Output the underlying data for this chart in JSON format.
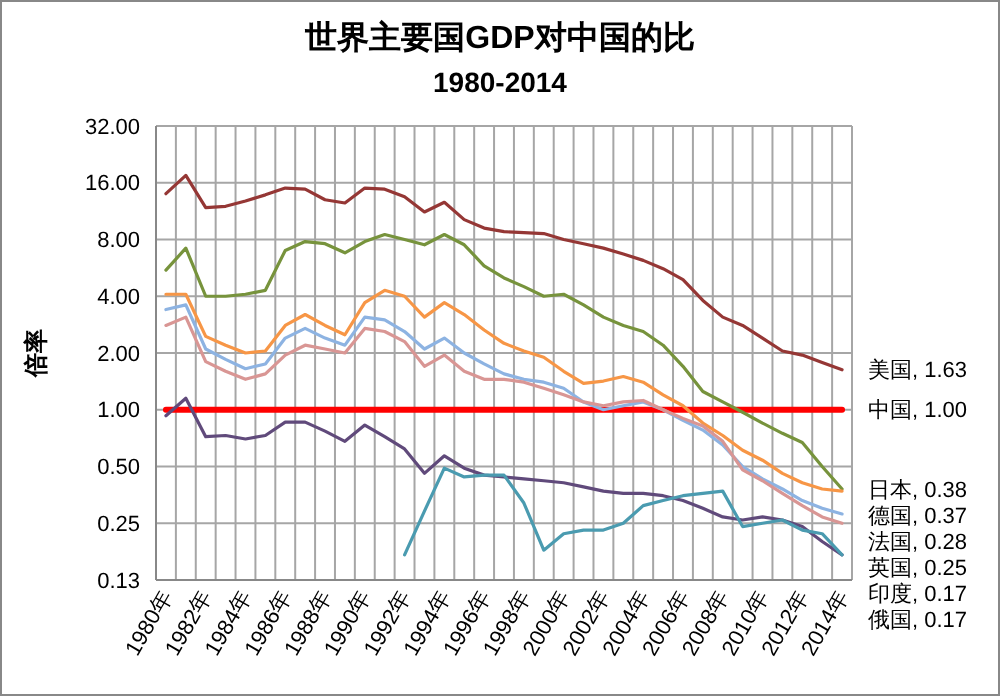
{
  "chart_data": {
    "type": "line",
    "title": "世界主要国GDP对中国的比",
    "subtitle": "1980-2014",
    "ylabel": "倍率",
    "categories": [
      "1980年",
      null,
      "1982年",
      null,
      "1984年",
      null,
      "1986年",
      null,
      "1988年",
      null,
      "1990年",
      null,
      "1992年",
      null,
      "1994年",
      null,
      "1996年",
      null,
      "1998年",
      null,
      "2000年",
      null,
      "2002年",
      null,
      "2004年",
      null,
      "2006年",
      null,
      "2008年",
      null,
      "2010年",
      null,
      "2012年",
      null,
      "2014年"
    ],
    "series": [
      {
        "color": "#953735",
        "values": [
          14,
          17.5,
          11.8,
          12,
          12.8,
          13.8,
          15,
          14.8,
          13,
          12.5,
          15,
          14.8,
          13.5,
          11.2,
          12.6,
          10.2,
          9.2,
          8.8,
          8.7,
          8.6,
          8.0,
          7.6,
          7.2,
          6.7,
          6.2,
          5.6,
          4.9,
          3.8,
          3.1,
          2.8,
          2.4,
          2.05,
          1.95,
          1.78,
          1.63
        ]
      },
      {
        "color": "#ff0000",
        "values": [
          1,
          1,
          1,
          1,
          1,
          1,
          1,
          1,
          1,
          1,
          1,
          1,
          1,
          1,
          1,
          1,
          1,
          1,
          1,
          1,
          1,
          1,
          1,
          1,
          1,
          1,
          1,
          1,
          1,
          1,
          1,
          1,
          1,
          1,
          1
        ]
      },
      {
        "color": "#77933c",
        "values": [
          5.5,
          7.2,
          4.0,
          4.0,
          4.1,
          4.3,
          7.0,
          7.8,
          7.6,
          6.8,
          7.8,
          8.5,
          8.0,
          7.5,
          8.5,
          7.5,
          5.8,
          5.0,
          4.5,
          4.0,
          4.1,
          3.6,
          3.1,
          2.8,
          2.6,
          2.2,
          1.7,
          1.25,
          1.1,
          0.97,
          0.85,
          0.75,
          0.67,
          0.5,
          0.38
        ]
      },
      {
        "color": "#f79646",
        "values": [
          4.1,
          4.1,
          2.45,
          2.2,
          2.0,
          2.05,
          2.8,
          3.2,
          2.8,
          2.5,
          3.7,
          4.3,
          4.0,
          3.1,
          3.7,
          3.2,
          2.65,
          2.25,
          2.05,
          1.9,
          1.6,
          1.38,
          1.42,
          1.5,
          1.4,
          1.2,
          1.05,
          0.85,
          0.73,
          0.61,
          0.54,
          0.46,
          0.41,
          0.38,
          0.37
        ]
      },
      {
        "color": "#8db3e2",
        "values": [
          3.4,
          3.6,
          2.1,
          1.85,
          1.65,
          1.75,
          2.4,
          2.7,
          2.4,
          2.2,
          3.1,
          3.0,
          2.6,
          2.1,
          2.4,
          2.0,
          1.75,
          1.55,
          1.45,
          1.4,
          1.3,
          1.1,
          1.0,
          1.05,
          1.1,
          1.0,
          0.88,
          0.78,
          0.65,
          0.5,
          0.43,
          0.38,
          0.33,
          0.3,
          0.28
        ]
      },
      {
        "color": "#d99694",
        "values": [
          2.8,
          3.1,
          1.8,
          1.6,
          1.45,
          1.55,
          1.95,
          2.2,
          2.1,
          2.0,
          2.7,
          2.6,
          2.3,
          1.7,
          1.95,
          1.6,
          1.45,
          1.45,
          1.4,
          1.3,
          1.2,
          1.1,
          1.05,
          1.1,
          1.12,
          1.0,
          0.9,
          0.82,
          0.68,
          0.48,
          0.42,
          0.36,
          0.31,
          0.27,
          0.25
        ]
      },
      {
        "color": "#604a7b",
        "values": [
          0.93,
          1.15,
          0.72,
          0.73,
          0.7,
          0.73,
          0.86,
          0.86,
          0.77,
          0.68,
          0.83,
          0.72,
          0.62,
          0.46,
          0.57,
          0.49,
          0.45,
          0.44,
          0.43,
          0.42,
          0.41,
          0.39,
          0.37,
          0.36,
          0.36,
          0.35,
          0.33,
          0.3,
          0.27,
          0.26,
          0.27,
          0.26,
          0.24,
          0.2,
          0.17
        ]
      },
      {
        "color": "#4a9bb0",
        "values": [
          null,
          null,
          null,
          null,
          null,
          null,
          null,
          null,
          null,
          null,
          null,
          null,
          0.17,
          0.29,
          0.49,
          0.44,
          0.45,
          0.45,
          0.32,
          0.18,
          0.22,
          0.23,
          0.23,
          0.25,
          0.31,
          0.33,
          0.35,
          0.36,
          0.37,
          0.24,
          0.25,
          0.26,
          0.23,
          0.22,
          0.17
        ]
      }
    ],
    "annotations": [
      "美国, 1.63",
      "中国, 1.00",
      "日本, 0.38",
      "德国, 0.37",
      "法国, 0.28",
      "英国, 0.25",
      "印度, 0.17",
      "俄国, 0.17"
    ],
    "log": true,
    "ylim": [
      0.125,
      32
    ],
    "yticks": [
      {
        "value": 0.125,
        "label": "0.13"
      },
      {
        "value": 0.25,
        "label": "0.25"
      },
      {
        "value": 0.5,
        "label": "0.50"
      },
      {
        "value": 1,
        "label": "1.00"
      },
      {
        "value": 2,
        "label": "2.00"
      },
      {
        "value": 4,
        "label": "4.00"
      },
      {
        "value": 8,
        "label": "8.00"
      },
      {
        "value": 16,
        "label": "16.00"
      },
      {
        "value": 32,
        "label": "32.00"
      }
    ],
    "grid": true
  }
}
